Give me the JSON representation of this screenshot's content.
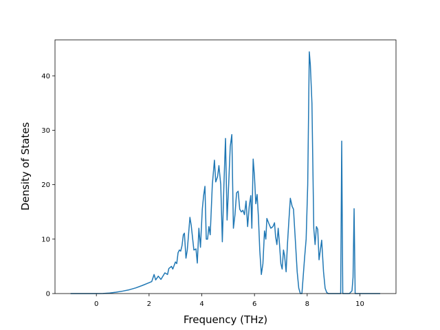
{
  "chart_data": {
    "type": "line",
    "xlabel": "Frequency (THz)",
    "ylabel": "Density of States",
    "xlim": [
      -1.57,
      11.37
    ],
    "ylim": [
      0,
      46.6
    ],
    "xticks": [
      0,
      2,
      4,
      6,
      8,
      10
    ],
    "yticks": [
      0,
      10,
      20,
      30,
      40
    ],
    "x": [
      -0.98,
      -0.5,
      0,
      0.25,
      0.5,
      0.75,
      1,
      1.25,
      1.5,
      1.75,
      2,
      2.1,
      2.19,
      2.25,
      2.35,
      2.45,
      2.5,
      2.6,
      2.7,
      2.75,
      2.85,
      2.9,
      3.0,
      3.05,
      3.1,
      3.15,
      3.2,
      3.25,
      3.3,
      3.34,
      3.4,
      3.45,
      3.5,
      3.55,
      3.6,
      3.7,
      3.78,
      3.83,
      3.89,
      3.95,
      4.02,
      4.07,
      4.12,
      4.17,
      4.22,
      4.27,
      4.32,
      4.4,
      4.48,
      4.53,
      4.6,
      4.65,
      4.72,
      4.78,
      4.84,
      4.9,
      4.96,
      5.02,
      5.08,
      5.14,
      5.2,
      5.26,
      5.32,
      5.38,
      5.44,
      5.5,
      5.56,
      5.62,
      5.68,
      5.74,
      5.8,
      5.86,
      5.9,
      5.95,
      6.0,
      6.05,
      6.1,
      6.15,
      6.2,
      6.26,
      6.32,
      6.38,
      6.43,
      6.47,
      6.55,
      6.62,
      6.7,
      6.76,
      6.8,
      6.85,
      6.9,
      6.95,
      7.0,
      7.05,
      7.1,
      7.14,
      7.2,
      7.25,
      7.3,
      7.36,
      7.43,
      7.48,
      7.56,
      7.62,
      7.68,
      7.74,
      7.8,
      7.9,
      7.96,
      8.02,
      8.08,
      8.12,
      8.18,
      8.25,
      8.3,
      8.35,
      8.4,
      8.45,
      8.5,
      8.55,
      8.62,
      8.68,
      8.74,
      8.8,
      8.86,
      9.0,
      9.2,
      9.27,
      9.31,
      9.35,
      9.4,
      9.6,
      9.7,
      9.74,
      9.78,
      9.82,
      9.86,
      10.0,
      10.4,
      10.77
    ],
    "series": [
      {
        "color": "#1f77b4",
        "values": [
          0,
          0,
          0,
          0.02,
          0.1,
          0.25,
          0.45,
          0.7,
          1.05,
          1.5,
          2.0,
          2.2,
          3.5,
          2.5,
          3.2,
          2.6,
          3.0,
          3.8,
          3.5,
          4.6,
          5.0,
          4.5,
          5.8,
          5.5,
          7.5,
          8.0,
          7.8,
          8.8,
          10.8,
          11.1,
          6.5,
          8.0,
          11.0,
          14.0,
          12.5,
          8.0,
          8.2,
          5.6,
          12.0,
          8.5,
          15.5,
          18.0,
          19.7,
          10.0,
          10.0,
          12.3,
          10.8,
          20.0,
          24.5,
          20.5,
          21.5,
          23.5,
          20.0,
          9.5,
          20.0,
          28.5,
          13.5,
          20.0,
          27.0,
          29.2,
          12.0,
          14.5,
          18.5,
          18.8,
          15.5,
          15.0,
          15.3,
          14.5,
          17.0,
          12.3,
          16.0,
          18.0,
          12.0,
          24.7,
          21.5,
          16.5,
          18.2,
          14.0,
          8.0,
          3.5,
          5.5,
          11.5,
          10.0,
          13.8,
          12.8,
          12.0,
          12.3,
          13.0,
          10.5,
          9.0,
          12.0,
          9.0,
          5.5,
          4.5,
          8.0,
          7.0,
          4.0,
          9.0,
          13.0,
          17.5,
          16.0,
          15.5,
          9.0,
          4.0,
          1.0,
          0,
          0,
          6.5,
          10.0,
          20.0,
          44.4,
          42.0,
          35.0,
          12.0,
          9.0,
          12.3,
          11.8,
          6.2,
          8.0,
          9.8,
          4.0,
          1.0,
          0.2,
          0,
          0,
          0,
          0,
          0,
          28.0,
          0,
          0,
          0,
          0.5,
          3.0,
          15.6,
          0,
          0,
          0,
          0,
          0
        ]
      }
    ]
  }
}
